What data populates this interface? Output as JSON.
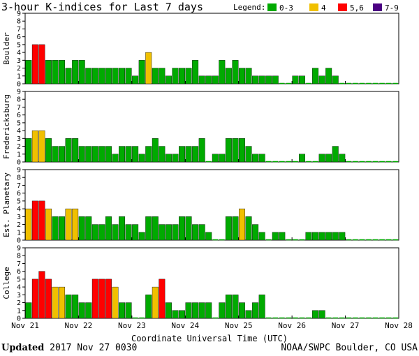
{
  "title": "3-hour K-indices for Last 7 days",
  "legend": {
    "label": "Legend:",
    "items": [
      {
        "label": "0-3",
        "color": "#00aa00"
      },
      {
        "label": "4",
        "color": "#f0c000"
      },
      {
        "label": "5,6",
        "color": "#ff0000"
      },
      {
        "label": "7-9",
        "color": "#4b0082"
      }
    ]
  },
  "footer": {
    "updated_label": "Updated",
    "updated_value": "2017 Nov 27 0030",
    "credit": "NOAA/SWPC Boulder, CO USA"
  },
  "chart_data": {
    "type": "bar",
    "xlabel": "Coordinate Universal Time (UTC)",
    "x_ticks": [
      "Nov 21",
      "Nov 22",
      "Nov 23",
      "Nov 24",
      "Nov 25",
      "Nov 26",
      "Nov 27",
      "Nov 28"
    ],
    "ylim": [
      0,
      9
    ],
    "y_ticks": [
      0,
      1,
      2,
      3,
      4,
      5,
      6,
      7,
      8,
      9
    ],
    "bars_per_day": 8,
    "series": [
      {
        "name": "Boulder",
        "values": [
          3,
          5,
          5,
          3,
          3,
          3,
          2,
          3,
          3,
          2,
          2,
          2,
          2,
          2,
          2,
          2,
          1,
          3,
          4,
          2,
          2,
          1,
          2,
          2,
          2,
          3,
          1,
          1,
          1,
          3,
          2,
          3,
          2,
          2,
          1,
          1,
          1,
          1,
          0,
          0,
          1,
          1,
          0,
          2,
          1,
          2,
          1,
          0,
          0,
          0,
          0,
          0,
          0,
          0,
          0,
          0
        ]
      },
      {
        "name": "Fredericksburg",
        "values": [
          3,
          4,
          4,
          3,
          2,
          2,
          3,
          3,
          2,
          2,
          2,
          2,
          2,
          1,
          2,
          2,
          2,
          1,
          2,
          3,
          2,
          1,
          1,
          2,
          2,
          2,
          3,
          0,
          1,
          1,
          3,
          3,
          3,
          2,
          1,
          1,
          0,
          0,
          0,
          0,
          0,
          1,
          0,
          0,
          1,
          1,
          2,
          1,
          0,
          0,
          0,
          0,
          0,
          0,
          0,
          0
        ]
      },
      {
        "name": "Est. Planetary",
        "values": [
          4,
          5,
          5,
          4,
          3,
          3,
          4,
          4,
          3,
          3,
          2,
          2,
          3,
          2,
          3,
          2,
          2,
          1,
          3,
          3,
          2,
          2,
          2,
          3,
          3,
          2,
          2,
          1,
          0,
          0,
          3,
          3,
          4,
          3,
          2,
          1,
          0,
          1,
          1,
          0,
          0,
          0,
          1,
          1,
          1,
          1,
          1,
          1,
          0,
          0,
          0,
          0,
          0,
          0,
          0,
          0
        ]
      },
      {
        "name": "College",
        "values": [
          2,
          5,
          6,
          5,
          4,
          4,
          3,
          3,
          2,
          2,
          5,
          5,
          5,
          4,
          2,
          2,
          0,
          0,
          3,
          4,
          5,
          2,
          1,
          1,
          2,
          2,
          2,
          2,
          0,
          2,
          3,
          3,
          2,
          1,
          2,
          3,
          0,
          0,
          0,
          0,
          0,
          0,
          0,
          1,
          1,
          0,
          0,
          0,
          0,
          0,
          0,
          0,
          0,
          0,
          0,
          0
        ]
      }
    ]
  }
}
